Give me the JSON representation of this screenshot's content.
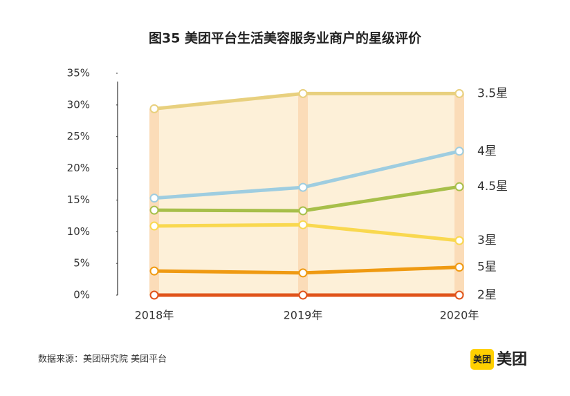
{
  "chart_data": {
    "type": "line",
    "title": "图35  美团平台生活美容服务业商户的星级评价",
    "categories": [
      "2018年",
      "2019年",
      "2020年"
    ],
    "series": [
      {
        "name": "3.5星",
        "color": "#e8d07e",
        "values": [
          29.4,
          31.8,
          31.8
        ]
      },
      {
        "name": "4星",
        "color": "#9ecde0",
        "values": [
          15.3,
          17.0,
          22.7
        ]
      },
      {
        "name": "4.5星",
        "color": "#a7bf4a",
        "values": [
          13.4,
          13.3,
          17.1
        ]
      },
      {
        "name": "3星",
        "color": "#f9d84f",
        "values": [
          10.9,
          11.1,
          8.6
        ]
      },
      {
        "name": "5星",
        "color": "#ef9a12",
        "values": [
          3.8,
          3.5,
          4.4
        ]
      },
      {
        "name": "2星",
        "color": "#e0531a",
        "values": [
          0,
          0,
          0
        ]
      }
    ],
    "ylim": [
      0,
      35
    ],
    "yticks": [
      {
        "value": 0,
        "label": "0%"
      },
      {
        "value": 5,
        "label": "5%"
      },
      {
        "value": 10,
        "label": "10%"
      },
      {
        "value": 15,
        "label": "15%"
      },
      {
        "value": 20,
        "label": "20%"
      },
      {
        "value": 25,
        "label": "25%"
      },
      {
        "value": 30,
        "label": "30%"
      },
      {
        "value": 35,
        "label": "35%"
      }
    ]
  },
  "footer": {
    "source": "数据来源：美团研究院  美团平台",
    "logo_badge": "美团",
    "logo_text": "美团"
  }
}
